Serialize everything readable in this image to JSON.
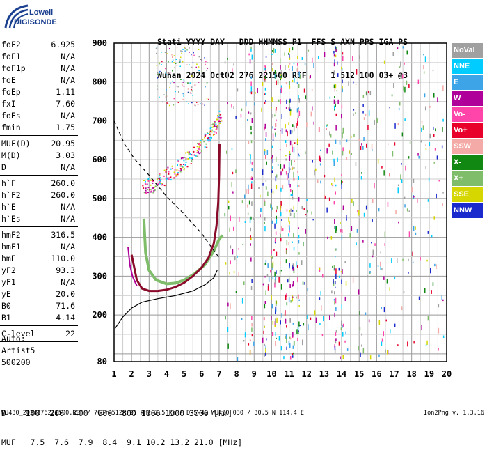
{
  "logo": {
    "line1": "Lowell",
    "line2": "DIGISONDE"
  },
  "header": {
    "labels": "Stati YYYY DAY   DDD HHMMSS P1  FFS S AXN PPS IGA PS",
    "values": "Wuhan 2024 Oct02 276 221500 RSF     1 512 100 03+ @3"
  },
  "params": [
    {
      "name": "foF2",
      "value": "6.925"
    },
    {
      "name": "foF1",
      "value": "N/A"
    },
    {
      "name": "foF1p",
      "value": "N/A"
    },
    {
      "name": "foE",
      "value": "N/A"
    },
    {
      "name": "foEp",
      "value": "1.11"
    },
    {
      "name": "fxI",
      "value": "7.60"
    },
    {
      "name": "foEs",
      "value": "N/A"
    },
    {
      "name": "fmin",
      "value": "1.75"
    },
    {
      "sep": true
    },
    {
      "name": "MUF(D)",
      "value": "20.95"
    },
    {
      "name": "M(D)",
      "value": "3.03"
    },
    {
      "name": "D",
      "value": "N/A"
    },
    {
      "sep": true
    },
    {
      "name": "h`F",
      "value": "260.0"
    },
    {
      "name": "h`F2",
      "value": "260.0"
    },
    {
      "name": "h`E",
      "value": "N/A"
    },
    {
      "name": "h`Es",
      "value": "N/A"
    },
    {
      "sep": true
    },
    {
      "name": "hmF2",
      "value": "316.5"
    },
    {
      "name": "hmF1",
      "value": "N/A"
    },
    {
      "name": "hmE",
      "value": "110.0"
    },
    {
      "name": "yF2",
      "value": "93.3"
    },
    {
      "name": "yF1",
      "value": "N/A"
    },
    {
      "name": "yE",
      "value": "20.0"
    },
    {
      "name": "B0",
      "value": "71.6"
    },
    {
      "name": "B1",
      "value": "4.14"
    },
    {
      "sep": true
    },
    {
      "name": "C-level",
      "value": "22"
    },
    {
      "sep": true
    }
  ],
  "auto": {
    "line1": "Auto:",
    "line2": "Artist5",
    "line3": "500200"
  },
  "legend": [
    {
      "label": "NoVal",
      "color": "#a0a0a0"
    },
    {
      "label": "NNE",
      "color": "#00ccff"
    },
    {
      "label": "E",
      "color": "#3ea4e8"
    },
    {
      "label": "W",
      "color": "#b0009a"
    },
    {
      "label": "Vo-",
      "color": "#ff44aa"
    },
    {
      "label": "Vo+",
      "color": "#e8002a"
    },
    {
      "label": "SSW",
      "color": "#f4aaa6"
    },
    {
      "label": "X-",
      "color": "#118811"
    },
    {
      "label": "X+",
      "color": "#7fbd6a"
    },
    {
      "label": "SSE",
      "color": "#d6d600"
    },
    {
      "label": "NNW",
      "color": "#1a2acc"
    }
  ],
  "conversion": {
    "d_row": "D    100  200  400  600  800 1000 1500 3000 [km]",
    "muf_row": "MUF   7.5  7.6  7.9  8.4  9.1 10.2 13.2 21.0 [MHz]"
  },
  "footer": "WU430_2024276221500.RSF / 760fx512h 25 kHz 2.5 km / DPS-4D WU430 030 / 30.5 N 114.4 E",
  "version": "Ion2Png v. 1.3.16",
  "chart_data": {
    "type": "scatter",
    "x_ticks": [
      "1",
      "2",
      "3",
      "4",
      "5",
      "6",
      "7",
      "8",
      "9",
      "10",
      "11",
      "12",
      "13",
      "14",
      "15",
      "16",
      "17",
      "18",
      "19",
      "20"
    ],
    "y_ticks": [
      "80",
      "200",
      "300",
      "400",
      "500",
      "600",
      "700",
      "800",
      "900"
    ],
    "xlim": [
      1,
      20
    ],
    "ylim": [
      80,
      900
    ],
    "grid": true,
    "traces": [
      {
        "name": "Vo+",
        "color": "#8a0a2a",
        "points": [
          [
            2.0,
            355
          ],
          [
            2.3,
            290
          ],
          [
            2.6,
            268
          ],
          [
            3.0,
            262
          ],
          [
            3.5,
            262
          ],
          [
            4.0,
            265
          ],
          [
            4.5,
            272
          ],
          [
            5.0,
            283
          ],
          [
            5.5,
            300
          ],
          [
            6.0,
            322
          ],
          [
            6.4,
            348
          ],
          [
            6.7,
            385
          ],
          [
            6.85,
            430
          ],
          [
            6.95,
            490
          ],
          [
            7.0,
            560
          ],
          [
            7.02,
            640
          ]
        ]
      },
      {
        "name": "X+",
        "color": "#7fbd6a",
        "points": [
          [
            2.7,
            448
          ],
          [
            2.8,
            360
          ],
          [
            3.0,
            315
          ],
          [
            3.4,
            290
          ],
          [
            4.0,
            280
          ],
          [
            4.5,
            282
          ],
          [
            5.0,
            290
          ],
          [
            5.6,
            306
          ],
          [
            6.2,
            330
          ],
          [
            6.7,
            365
          ],
          [
            7.0,
            395
          ],
          [
            7.2,
            405
          ]
        ]
      },
      {
        "name": "Vo- / W",
        "color": "#b0009a",
        "points": [
          [
            1.8,
            375
          ],
          [
            1.9,
            330
          ],
          [
            2.05,
            300
          ],
          [
            2.3,
            275
          ]
        ]
      }
    ],
    "profile": {
      "name": "N(h) profile",
      "color": "#000000",
      "points": [
        [
          1.05,
          165
        ],
        [
          1.5,
          195
        ],
        [
          2.0,
          218
        ],
        [
          2.6,
          233
        ],
        [
          3.5,
          242
        ],
        [
          4.5,
          250
        ],
        [
          5.5,
          262
        ],
        [
          6.2,
          278
        ],
        [
          6.7,
          296
        ],
        [
          6.9,
          316
        ]
      ]
    },
    "dashed": {
      "name": "dashed model",
      "color": "#000000",
      "points": [
        [
          1.0,
          700
        ],
        [
          1.6,
          640
        ],
        [
          2.2,
          600
        ],
        [
          3.0,
          560
        ],
        [
          4.0,
          505
        ],
        [
          5.0,
          460
        ],
        [
          6.0,
          410
        ],
        [
          6.8,
          360
        ],
        [
          7.05,
          345
        ]
      ]
    },
    "echo_band": {
      "name": "F2 multihop echoes",
      "points": [
        [
          2.6,
          530
        ],
        [
          3.2,
          535
        ],
        [
          4.0,
          560
        ],
        [
          4.8,
          590
        ],
        [
          5.6,
          620
        ],
        [
          6.2,
          650
        ],
        [
          6.7,
          680
        ],
        [
          7.1,
          720
        ]
      ]
    }
  }
}
